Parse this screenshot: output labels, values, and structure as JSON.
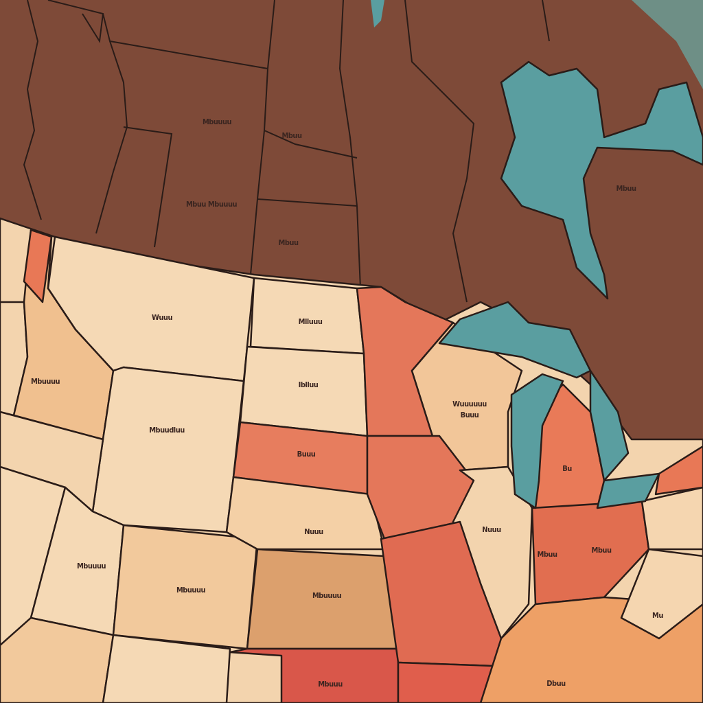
{
  "map": {
    "colors": {
      "canada": "#7e4a38",
      "water": "#5a9ea0",
      "state_light": "#f3d4ae",
      "state_orange": "#eea066",
      "state_tan": "#dca06d",
      "state_red": "#e4775a",
      "state_dark_red": "#d9574a",
      "border": "#2a1c18"
    },
    "labels": [
      {
        "id": "canada-1",
        "text": "Mbuuuu"
      },
      {
        "id": "canada-2",
        "text": "Mbuu"
      },
      {
        "id": "canada-3",
        "text": "Mbuu Mbuuuu"
      },
      {
        "id": "canada-4",
        "text": "Mbuu"
      },
      {
        "id": "canada-5",
        "text": "Mbuu"
      },
      {
        "id": "montana",
        "text": "Wuuu"
      },
      {
        "id": "north-dakota",
        "text": "Mlluuu"
      },
      {
        "id": "idaho",
        "text": "Mbuuuu"
      },
      {
        "id": "south-dakota",
        "text": "Iblluu"
      },
      {
        "id": "wyoming",
        "text": "Mbuudluu"
      },
      {
        "id": "wisconsin-1",
        "text": "Wuuuuuu"
      },
      {
        "id": "wisconsin-2",
        "text": "Buuu"
      },
      {
        "id": "nebraska",
        "text": "Buuu"
      },
      {
        "id": "michigan",
        "text": "Bu"
      },
      {
        "id": "illinois",
        "text": "Nuuu"
      },
      {
        "id": "kansas-north",
        "text": "Nuuu"
      },
      {
        "id": "utah",
        "text": "Mbuuuu"
      },
      {
        "id": "indiana",
        "text": "Mbuu"
      },
      {
        "id": "ohio",
        "text": "Mbuu"
      },
      {
        "id": "colorado",
        "text": "Mbuuuu"
      },
      {
        "id": "kansas",
        "text": "Mbuuuu"
      },
      {
        "id": "virginia",
        "text": "Mu"
      },
      {
        "id": "oklahoma",
        "text": "Mbuuu"
      },
      {
        "id": "tennessee",
        "text": "Dbuu"
      }
    ]
  }
}
